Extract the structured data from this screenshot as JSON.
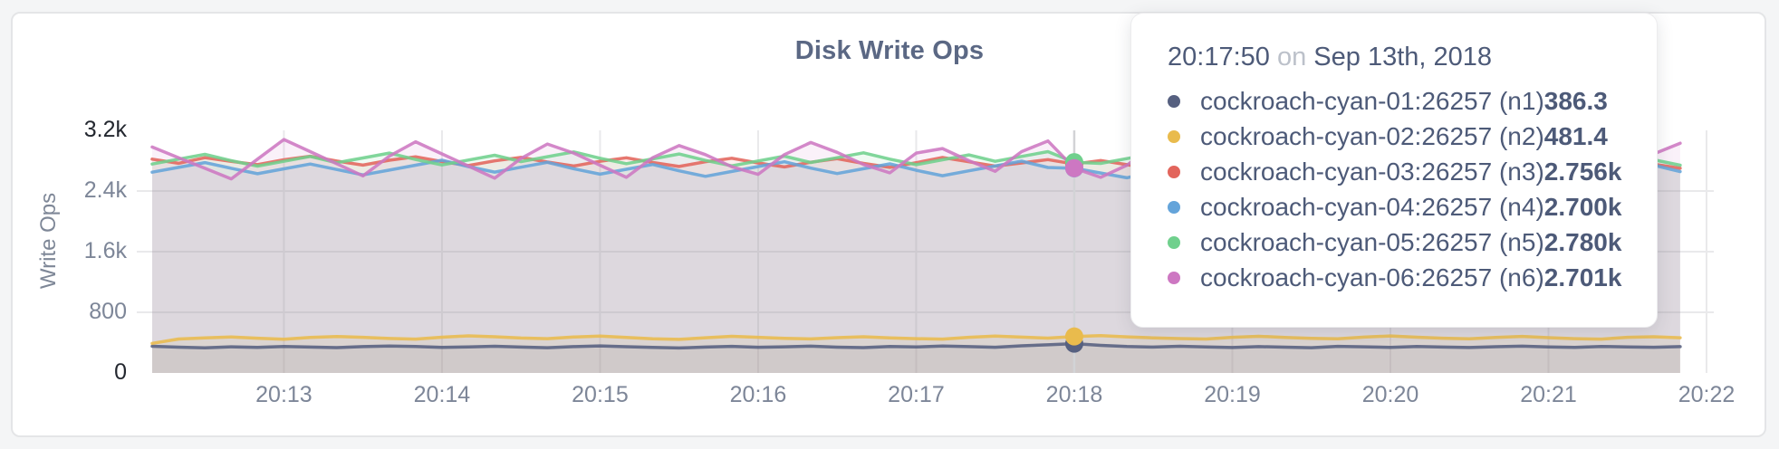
{
  "tooltip": {
    "time": "20:17:50",
    "connector": "on",
    "date": "Sep 13th, 2018",
    "rows": [
      {
        "label": "cockroach-cyan-01:26257 (n1)",
        "value": "386.3",
        "color": "#566080"
      },
      {
        "label": "cockroach-cyan-02:26257 (n2)",
        "value": "481.4",
        "color": "#e9bb4d"
      },
      {
        "label": "cockroach-cyan-03:26257 (n3)",
        "value": "2.756k",
        "color": "#e2655c"
      },
      {
        "label": "cockroach-cyan-04:26257 (n4)",
        "value": "2.700k",
        "color": "#64a4da"
      },
      {
        "label": "cockroach-cyan-05:26257 (n5)",
        "value": "2.780k",
        "color": "#70d08d"
      },
      {
        "label": "cockroach-cyan-06:26257 (n6)",
        "value": "2.701k",
        "color": "#cd77c2"
      }
    ]
  },
  "chart_data": {
    "type": "line",
    "title": "Disk Write Ops",
    "xlabel": "",
    "ylabel": "Write Ops",
    "ylim": [
      0,
      3200
    ],
    "grid": true,
    "x_start_time": "20:12:10",
    "x_interval_seconds": 10,
    "x_ticks": [
      {
        "label": "20:13",
        "t": 50
      },
      {
        "label": "20:14",
        "t": 110
      },
      {
        "label": "20:15",
        "t": 170
      },
      {
        "label": "20:16",
        "t": 230
      },
      {
        "label": "20:17",
        "t": 290
      },
      {
        "label": "20:18",
        "t": 350
      },
      {
        "label": "20:19",
        "t": 410
      },
      {
        "label": "20:20",
        "t": 470
      },
      {
        "label": "20:21",
        "t": 530
      },
      {
        "label": "20:22",
        "t": 590
      }
    ],
    "y_ticks": [
      {
        "label": "0",
        "v": 0,
        "grid": false,
        "strong": true
      },
      {
        "label": "800",
        "v": 800,
        "grid": true,
        "strong": false
      },
      {
        "label": "1.6k",
        "v": 1600,
        "grid": true,
        "strong": false
      },
      {
        "label": "2.4k",
        "v": 2400,
        "grid": true,
        "strong": false
      },
      {
        "label": "3.2k",
        "v": 3200,
        "grid": false,
        "strong": true
      }
    ],
    "hover_index": 35,
    "hover_time": "20:17:50",
    "series": [
      {
        "name": "cockroach-cyan-01:26257 (n1)",
        "color": "#566080",
        "values": [
          352,
          340,
          331,
          345,
          338,
          350,
          342,
          334,
          347,
          356,
          349,
          337,
          344,
          352,
          341,
          333,
          348,
          357,
          346,
          338,
          330,
          342,
          351,
          339,
          345,
          353,
          340,
          334,
          349,
          343,
          356,
          347,
          339,
          358,
          371,
          386.3,
          364,
          349,
          341,
          352,
          344,
          336,
          347,
          340,
          333,
          351,
          345,
          338,
          349,
          342,
          335,
          346,
          354,
          343,
          337,
          350,
          344,
          339,
          347
        ]
      },
      {
        "name": "cockroach-cyan-02:26257 (n2)",
        "color": "#e9bb4d",
        "values": [
          391,
          448,
          462,
          475,
          459,
          444,
          468,
          481,
          470,
          455,
          447,
          472,
          490,
          478,
          461,
          452,
          474,
          486,
          469,
          451,
          443,
          465,
          483,
          471,
          457,
          449,
          466,
          478,
          462,
          453,
          446,
          470,
          487,
          473,
          460,
          481.4,
          492,
          476,
          463,
          454,
          448,
          471,
          484,
          469,
          456,
          450,
          473,
          488,
          472,
          458,
          451,
          469,
          482,
          466,
          452,
          447,
          470,
          478,
          464
        ]
      },
      {
        "name": "cockroach-cyan-03:26257 (n3)",
        "color": "#e2655c",
        "values": [
          2820,
          2765,
          2840,
          2790,
          2748,
          2812,
          2858,
          2795,
          2742,
          2806,
          2851,
          2788,
          2736,
          2798,
          2844,
          2782,
          2730,
          2792,
          2838,
          2776,
          2724,
          2786,
          2832,
          2770,
          2718,
          2780,
          2826,
          2764,
          2712,
          2774,
          2842,
          2786,
          2728,
          2770,
          2814,
          2756,
          2802,
          2748,
          2694,
          2760,
          2818,
          2762,
          2708,
          2772,
          2828,
          2766,
          2714,
          2776,
          2822,
          2760,
          2706,
          2768,
          2824,
          2762,
          2710,
          2772,
          2816,
          2754,
          2700
        ]
      },
      {
        "name": "cockroach-cyan-04:26257 (n4)",
        "color": "#64a4da",
        "values": [
          2648,
          2712,
          2775,
          2700,
          2628,
          2692,
          2756,
          2684,
          2612,
          2676,
          2740,
          2806,
          2722,
          2650,
          2714,
          2778,
          2694,
          2622,
          2686,
          2750,
          2666,
          2594,
          2658,
          2722,
          2786,
          2702,
          2630,
          2694,
          2758,
          2674,
          2602,
          2666,
          2730,
          2794,
          2710,
          2700,
          2638,
          2574,
          2660,
          2724,
          2788,
          2704,
          2632,
          2696,
          2760,
          2676,
          2604,
          2668,
          2732,
          2796,
          2712,
          2640,
          2704,
          2768,
          2684,
          2612,
          2676,
          2740,
          2656
        ]
      },
      {
        "name": "cockroach-cyan-05:26257 (n5)",
        "color": "#70d08d",
        "values": [
          2756,
          2820,
          2884,
          2800,
          2728,
          2792,
          2856,
          2772,
          2836,
          2900,
          2816,
          2744,
          2808,
          2872,
          2788,
          2852,
          2916,
          2832,
          2760,
          2824,
          2888,
          2804,
          2732,
          2796,
          2860,
          2776,
          2840,
          2904,
          2820,
          2748,
          2812,
          2876,
          2792,
          2856,
          2920,
          2780,
          2764,
          2828,
          2892,
          2808,
          2736,
          2800,
          2864,
          2780,
          2844,
          2908,
          2824,
          2752,
          2816,
          2880,
          2796,
          2724,
          2788,
          2852,
          2768,
          2832,
          2896,
          2812,
          2740
        ]
      },
      {
        "name": "cockroach-cyan-06:26257 (n6)",
        "color": "#cd77c2",
        "values": [
          2980,
          2840,
          2700,
          2560,
          2820,
          3080,
          2920,
          2760,
          2600,
          2860,
          3050,
          2890,
          2730,
          2570,
          2830,
          3020,
          2900,
          2740,
          2580,
          2840,
          3000,
          2880,
          2720,
          2620,
          2880,
          3040,
          2910,
          2750,
          2640,
          2900,
          2960,
          2800,
          2660,
          2920,
          3060,
          2701,
          2580,
          2740,
          3000,
          2860,
          2700,
          2560,
          2820,
          2980,
          2850,
          2690,
          2550,
          2810,
          2970,
          2830,
          2670,
          2590,
          2850,
          3010,
          2870,
          2710,
          2630,
          2890,
          3030
        ]
      }
    ],
    "style": {
      "grid_color": "#e9e9eb",
      "hover_line_color": "#d2d3d6",
      "area_fill_opacity": 0.1,
      "line_width": 3.5
    }
  }
}
